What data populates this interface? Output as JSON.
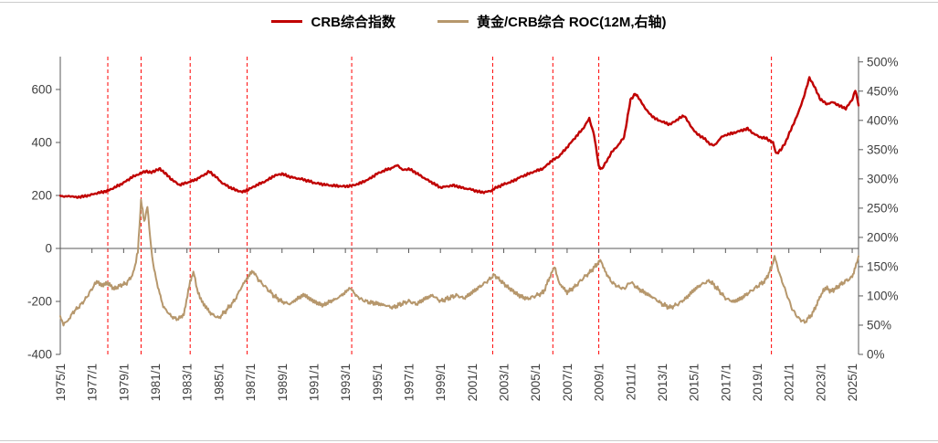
{
  "legend": {
    "items": [
      {
        "label": "CRB综合指数",
        "color": "#c00000"
      },
      {
        "label": "黄金/CRB综合 ROC(12M,右轴)",
        "color": "#b6976c"
      }
    ]
  },
  "chart_data": {
    "type": "line",
    "title": "",
    "grid": false,
    "legend_position": "top-center",
    "x_axis": {
      "min": 1975,
      "max": 2025.4,
      "tick_years": [
        1975,
        1977,
        1979,
        1981,
        1983,
        1985,
        1987,
        1989,
        1991,
        1993,
        1995,
        1997,
        1999,
        2001,
        2003,
        2005,
        2007,
        2009,
        2011,
        2013,
        2015,
        2017,
        2019,
        2021,
        2023,
        2025
      ],
      "tick_labels": [
        "1975/1",
        "1977/1",
        "1979/1",
        "1981/1",
        "1983/1",
        "1985/1",
        "1987/1",
        "1989/1",
        "1991/1",
        "1993/1",
        "1995/1",
        "1997/1",
        "1999/1",
        "2001/1",
        "2003/1",
        "2005/1",
        "2007/1",
        "2009/1",
        "2011/1",
        "2013/1",
        "2015/1",
        "2017/1",
        "2019/1",
        "2021/1",
        "2023/1",
        "2025/1"
      ]
    },
    "left_axis": {
      "min": -400,
      "max": 724,
      "tick_values": [
        600,
        400,
        200,
        0,
        -200,
        -400
      ],
      "tick_labels": [
        "600",
        "400",
        "200",
        "0",
        "-200",
        "-400"
      ]
    },
    "right_axis": {
      "min": 0,
      "max": 509,
      "suffix": "%",
      "tick_values": [
        500,
        450,
        400,
        350,
        300,
        250,
        200,
        150,
        100,
        50,
        0
      ],
      "tick_labels": [
        "500%",
        "450%",
        "400%",
        "350%",
        "300%",
        "250%",
        "200%",
        "150%",
        "100%",
        "50%",
        "0%"
      ]
    },
    "event_lines": {
      "color": "#ff0000",
      "dash": "4 3",
      "years": [
        1978.0,
        1980.1,
        1983.2,
        1986.8,
        1993.4,
        2002.3,
        2006.1,
        2009.0,
        2019.9
      ]
    },
    "series": [
      {
        "name": "CRB综合指数",
        "axis": "left",
        "color": "#c00000",
        "width": 2.4,
        "jitter": 5,
        "points": [
          [
            1975.0,
            200
          ],
          [
            1975.3,
            195
          ],
          [
            1975.6,
            198
          ],
          [
            1976.0,
            193
          ],
          [
            1976.4,
            196
          ],
          [
            1976.8,
            200
          ],
          [
            1977.2,
            207
          ],
          [
            1977.6,
            212
          ],
          [
            1978.0,
            218
          ],
          [
            1978.5,
            232
          ],
          [
            1979.0,
            248
          ],
          [
            1979.5,
            268
          ],
          [
            1980.0,
            282
          ],
          [
            1980.4,
            292
          ],
          [
            1980.7,
            286
          ],
          [
            1981.0,
            294
          ],
          [
            1981.3,
            300
          ],
          [
            1981.6,
            285
          ],
          [
            1982.0,
            262
          ],
          [
            1982.5,
            240
          ],
          [
            1983.0,
            248
          ],
          [
            1983.5,
            258
          ],
          [
            1984.0,
            275
          ],
          [
            1984.4,
            290
          ],
          [
            1984.8,
            272
          ],
          [
            1985.2,
            248
          ],
          [
            1985.6,
            234
          ],
          [
            1986.0,
            222
          ],
          [
            1986.5,
            213
          ],
          [
            1987.0,
            226
          ],
          [
            1987.5,
            242
          ],
          [
            1988.0,
            255
          ],
          [
            1988.5,
            274
          ],
          [
            1989.0,
            282
          ],
          [
            1989.4,
            272
          ],
          [
            1989.8,
            266
          ],
          [
            1990.2,
            262
          ],
          [
            1990.6,
            256
          ],
          [
            1991.0,
            248
          ],
          [
            1991.5,
            243
          ],
          [
            1992.0,
            238
          ],
          [
            1992.5,
            236
          ],
          [
            1993.0,
            234
          ],
          [
            1993.5,
            238
          ],
          [
            1994.0,
            248
          ],
          [
            1994.5,
            262
          ],
          [
            1995.0,
            282
          ],
          [
            1995.5,
            295
          ],
          [
            1996.0,
            305
          ],
          [
            1996.3,
            315
          ],
          [
            1996.6,
            296
          ],
          [
            1997.0,
            300
          ],
          [
            1997.4,
            288
          ],
          [
            1997.8,
            272
          ],
          [
            1998.2,
            258
          ],
          [
            1998.6,
            244
          ],
          [
            1999.0,
            230
          ],
          [
            1999.4,
            234
          ],
          [
            1999.8,
            238
          ],
          [
            2000.2,
            232
          ],
          [
            2000.6,
            226
          ],
          [
            2001.0,
            222
          ],
          [
            2001.4,
            214
          ],
          [
            2001.8,
            212
          ],
          [
            2002.2,
            218
          ],
          [
            2002.6,
            232
          ],
          [
            2003.0,
            242
          ],
          [
            2003.5,
            252
          ],
          [
            2004.0,
            268
          ],
          [
            2004.5,
            280
          ],
          [
            2005.0,
            292
          ],
          [
            2005.5,
            302
          ],
          [
            2006.0,
            330
          ],
          [
            2006.5,
            348
          ],
          [
            2007.0,
            382
          ],
          [
            2007.5,
            418
          ],
          [
            2008.0,
            452
          ],
          [
            2008.4,
            490
          ],
          [
            2008.7,
            430
          ],
          [
            2009.0,
            310
          ],
          [
            2009.2,
            300
          ],
          [
            2009.5,
            330
          ],
          [
            2009.8,
            362
          ],
          [
            2010.2,
            388
          ],
          [
            2010.6,
            420
          ],
          [
            2011.0,
            560
          ],
          [
            2011.3,
            585
          ],
          [
            2011.7,
            552
          ],
          [
            2012.0,
            522
          ],
          [
            2012.5,
            492
          ],
          [
            2013.0,
            478
          ],
          [
            2013.5,
            468
          ],
          [
            2014.0,
            488
          ],
          [
            2014.4,
            502
          ],
          [
            2014.8,
            462
          ],
          [
            2015.2,
            432
          ],
          [
            2015.6,
            418
          ],
          [
            2016.0,
            395
          ],
          [
            2016.3,
            388
          ],
          [
            2016.7,
            418
          ],
          [
            2017.0,
            428
          ],
          [
            2017.5,
            436
          ],
          [
            2018.0,
            445
          ],
          [
            2018.4,
            452
          ],
          [
            2018.8,
            432
          ],
          [
            2019.2,
            420
          ],
          [
            2019.6,
            415
          ],
          [
            2020.0,
            398
          ],
          [
            2020.2,
            358
          ],
          [
            2020.5,
            372
          ],
          [
            2020.8,
            402
          ],
          [
            2021.2,
            458
          ],
          [
            2021.6,
            512
          ],
          [
            2022.0,
            582
          ],
          [
            2022.3,
            645
          ],
          [
            2022.6,
            612
          ],
          [
            2023.0,
            562
          ],
          [
            2023.4,
            545
          ],
          [
            2023.8,
            552
          ],
          [
            2024.2,
            538
          ],
          [
            2024.6,
            528
          ],
          [
            2025.0,
            562
          ],
          [
            2025.2,
            598
          ],
          [
            2025.4,
            540
          ]
        ]
      },
      {
        "name": "黄金/CRB综合 ROC(12M,右轴)",
        "axis": "right",
        "color": "#b6976c",
        "width": 2.0,
        "jitter": 4.5,
        "points": [
          [
            1975.0,
            65
          ],
          [
            1975.2,
            52
          ],
          [
            1975.5,
            58
          ],
          [
            1975.8,
            72
          ],
          [
            1976.2,
            82
          ],
          [
            1976.6,
            95
          ],
          [
            1977.0,
            112
          ],
          [
            1977.3,
            125
          ],
          [
            1977.6,
            118
          ],
          [
            1978.0,
            122
          ],
          [
            1978.4,
            112
          ],
          [
            1978.8,
            118
          ],
          [
            1979.2,
            122
          ],
          [
            1979.6,
            138
          ],
          [
            1979.9,
            175
          ],
          [
            1980.1,
            265
          ],
          [
            1980.3,
            228
          ],
          [
            1980.5,
            252
          ],
          [
            1980.8,
            165
          ],
          [
            1981.1,
            122
          ],
          [
            1981.5,
            82
          ],
          [
            1982.0,
            65
          ],
          [
            1982.4,
            60
          ],
          [
            1982.8,
            68
          ],
          [
            1983.2,
            125
          ],
          [
            1983.4,
            142
          ],
          [
            1983.7,
            105
          ],
          [
            1984.0,
            88
          ],
          [
            1984.5,
            70
          ],
          [
            1985.0,
            62
          ],
          [
            1985.5,
            76
          ],
          [
            1986.0,
            92
          ],
          [
            1986.5,
            118
          ],
          [
            1987.0,
            138
          ],
          [
            1987.2,
            142
          ],
          [
            1987.5,
            128
          ],
          [
            1988.0,
            114
          ],
          [
            1988.5,
            100
          ],
          [
            1989.0,
            90
          ],
          [
            1989.5,
            86
          ],
          [
            1990.0,
            96
          ],
          [
            1990.4,
            102
          ],
          [
            1990.8,
            94
          ],
          [
            1991.2,
            88
          ],
          [
            1991.6,
            84
          ],
          [
            1992.0,
            90
          ],
          [
            1992.5,
            96
          ],
          [
            1993.0,
            106
          ],
          [
            1993.3,
            114
          ],
          [
            1993.7,
            100
          ],
          [
            1994.0,
            94
          ],
          [
            1994.5,
            89
          ],
          [
            1995.0,
            87
          ],
          [
            1995.5,
            84
          ],
          [
            1996.0,
            80
          ],
          [
            1996.5,
            86
          ],
          [
            1997.0,
            91
          ],
          [
            1997.5,
            86
          ],
          [
            1998.0,
            95
          ],
          [
            1998.5,
            101
          ],
          [
            1999.0,
            91
          ],
          [
            1999.5,
            96
          ],
          [
            2000.0,
            101
          ],
          [
            2000.5,
            96
          ],
          [
            2001.0,
            106
          ],
          [
            2001.5,
            116
          ],
          [
            2002.0,
            126
          ],
          [
            2002.4,
            136
          ],
          [
            2002.8,
            126
          ],
          [
            2003.2,
            116
          ],
          [
            2003.6,
            108
          ],
          [
            2004.0,
            100
          ],
          [
            2004.5,
            95
          ],
          [
            2005.0,
            100
          ],
          [
            2005.5,
            106
          ],
          [
            2006.0,
            138
          ],
          [
            2006.2,
            150
          ],
          [
            2006.5,
            122
          ],
          [
            2007.0,
            106
          ],
          [
            2007.5,
            116
          ],
          [
            2008.0,
            130
          ],
          [
            2008.5,
            142
          ],
          [
            2008.9,
            155
          ],
          [
            2009.1,
            162
          ],
          [
            2009.4,
            142
          ],
          [
            2009.8,
            124
          ],
          [
            2010.2,
            116
          ],
          [
            2010.6,
            112
          ],
          [
            2011.0,
            124
          ],
          [
            2011.5,
            112
          ],
          [
            2012.0,
            104
          ],
          [
            2012.5,
            96
          ],
          [
            2013.0,
            86
          ],
          [
            2013.5,
            80
          ],
          [
            2014.0,
            86
          ],
          [
            2014.5,
            96
          ],
          [
            2015.0,
            110
          ],
          [
            2015.5,
            120
          ],
          [
            2016.0,
            126
          ],
          [
            2016.5,
            112
          ],
          [
            2017.0,
            96
          ],
          [
            2017.5,
            90
          ],
          [
            2018.0,
            96
          ],
          [
            2018.5,
            106
          ],
          [
            2019.0,
            116
          ],
          [
            2019.5,
            126
          ],
          [
            2019.9,
            148
          ],
          [
            2020.1,
            168
          ],
          [
            2020.4,
            138
          ],
          [
            2020.8,
            108
          ],
          [
            2021.2,
            78
          ],
          [
            2021.6,
            62
          ],
          [
            2022.0,
            55
          ],
          [
            2022.5,
            70
          ],
          [
            2023.0,
            100
          ],
          [
            2023.3,
            114
          ],
          [
            2023.7,
            108
          ],
          [
            2024.0,
            114
          ],
          [
            2024.5,
            124
          ],
          [
            2025.0,
            132
          ],
          [
            2025.2,
            150
          ],
          [
            2025.4,
            168
          ]
        ]
      }
    ]
  }
}
